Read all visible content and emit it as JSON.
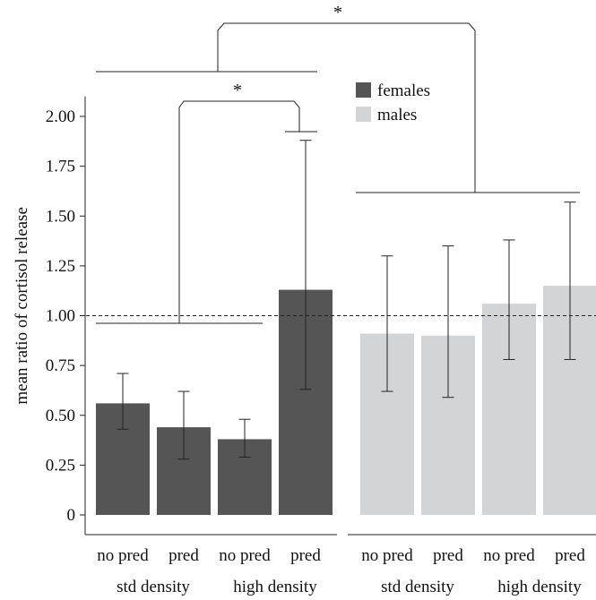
{
  "chart_data": {
    "type": "bar",
    "ylabel": "mean ratio of cortisol release",
    "ylim": [
      0,
      2.1
    ],
    "yticks": [
      0,
      0.25,
      0.5,
      0.75,
      1.0,
      1.25,
      1.5,
      1.75,
      2.0
    ],
    "ytick_labels": [
      "0",
      "0.25",
      "0.50",
      "0.75",
      "1.00",
      "1.25",
      "1.50",
      "1.75",
      "2.00"
    ],
    "reference_line": 1.0,
    "legend": [
      {
        "label": "females",
        "color": "#555555"
      },
      {
        "label": "males",
        "color": "#d3d4d5"
      }
    ],
    "legend_position": "top-center",
    "categories": [
      "no pred",
      "pred",
      "no pred",
      "pred"
    ],
    "group_labels": [
      "std density",
      "high density"
    ],
    "series": [
      {
        "name": "females",
        "color": "#555555",
        "values": [
          0.56,
          0.44,
          0.38,
          1.13
        ],
        "err_low": [
          0.43,
          0.28,
          0.29,
          0.63
        ],
        "err_high": [
          0.71,
          0.62,
          0.48,
          1.88
        ]
      },
      {
        "name": "males",
        "color": "#d3d4d5",
        "values": [
          0.91,
          0.9,
          1.06,
          1.15
        ],
        "err_low": [
          0.62,
          0.59,
          0.78,
          0.78
        ],
        "err_high": [
          1.3,
          1.35,
          1.38,
          1.57
        ]
      }
    ],
    "annotations": [
      {
        "text": "*",
        "compares": "female std density vs female high density pred"
      },
      {
        "text": "*",
        "compares": "females vs males"
      }
    ]
  }
}
